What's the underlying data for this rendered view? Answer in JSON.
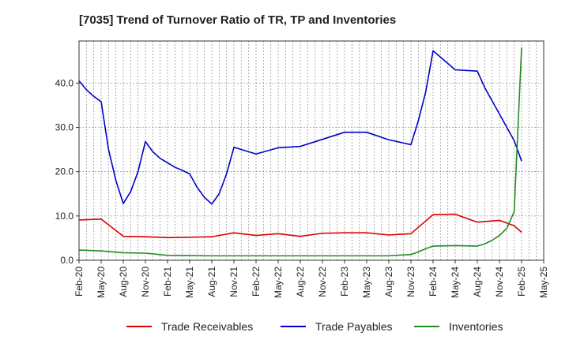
{
  "chart_data": {
    "type": "line",
    "title": "[7035]  Trend of Turnover Ratio of TR, TP and Inventories",
    "xlabel": "",
    "ylabel": "",
    "x_ticks": [
      "Feb-20",
      "May-20",
      "Aug-20",
      "Nov-20",
      "Feb-21",
      "May-21",
      "Aug-21",
      "Nov-21",
      "Feb-22",
      "May-22",
      "Aug-22",
      "Nov-22",
      "Feb-23",
      "May-23",
      "Aug-23",
      "Nov-23",
      "Feb-24",
      "May-24",
      "Aug-24",
      "Nov-24",
      "Feb-25",
      "May-25"
    ],
    "y_ticks": [
      "0.0",
      "10.0",
      "20.0",
      "30.0",
      "40.0"
    ],
    "ylim": [
      0,
      49.5
    ],
    "grid": true,
    "legend_position": "bottom",
    "series": [
      {
        "name": "Trade Receivables",
        "color": "#dd0000",
        "points": [
          [
            0,
            9.1
          ],
          [
            3,
            9.3
          ],
          [
            6,
            5.4
          ],
          [
            9,
            5.3
          ],
          [
            12,
            5.1
          ],
          [
            15,
            5.2
          ],
          [
            18,
            5.3
          ],
          [
            21,
            6.2
          ],
          [
            24,
            5.6
          ],
          [
            27,
            6.0
          ],
          [
            30,
            5.4
          ],
          [
            33,
            6.1
          ],
          [
            36,
            6.2
          ],
          [
            39,
            6.2
          ],
          [
            42,
            5.7
          ],
          [
            45,
            6.0
          ],
          [
            48,
            10.3
          ],
          [
            51,
            10.4
          ],
          [
            54,
            8.6
          ],
          [
            57,
            9.0
          ],
          [
            59,
            7.8
          ],
          [
            60,
            6.3
          ]
        ]
      },
      {
        "name": "Trade Payables",
        "color": "#0000cc",
        "points": [
          [
            0,
            40.5
          ],
          [
            1,
            38.5
          ],
          [
            2,
            37
          ],
          [
            3,
            35.8
          ],
          [
            4,
            25
          ],
          [
            5,
            18
          ],
          [
            6,
            12.8
          ],
          [
            7,
            15.5
          ],
          [
            8,
            20
          ],
          [
            9,
            26.8
          ],
          [
            10,
            24.5
          ],
          [
            11,
            23
          ],
          [
            12,
            22
          ],
          [
            13,
            21
          ],
          [
            14,
            20.3
          ],
          [
            15,
            19.5
          ],
          [
            16,
            16.5
          ],
          [
            17,
            14.2
          ],
          [
            18,
            12.7
          ],
          [
            19,
            15
          ],
          [
            20,
            19.5
          ],
          [
            21,
            25.5
          ],
          [
            24,
            24
          ],
          [
            27,
            25.4
          ],
          [
            30,
            25.7
          ],
          [
            33,
            27.3
          ],
          [
            36,
            28.9
          ],
          [
            39,
            28.9
          ],
          [
            42,
            27.2
          ],
          [
            45,
            26.1
          ],
          [
            46,
            31.5
          ],
          [
            47,
            38
          ],
          [
            48,
            47.3
          ],
          [
            51,
            43
          ],
          [
            54,
            42.7
          ],
          [
            55,
            39
          ],
          [
            57,
            33
          ],
          [
            59,
            27
          ],
          [
            60,
            22.4
          ]
        ]
      },
      {
        "name": "Inventories",
        "color": "#228b22",
        "points": [
          [
            0,
            2.3
          ],
          [
            3,
            2.1
          ],
          [
            6,
            1.7
          ],
          [
            9,
            1.6
          ],
          [
            12,
            1.1
          ],
          [
            15,
            1.05
          ],
          [
            18,
            1.0
          ],
          [
            21,
            1.0
          ],
          [
            24,
            1.0
          ],
          [
            27,
            1.0
          ],
          [
            30,
            1.0
          ],
          [
            33,
            1.0
          ],
          [
            36,
            1.0
          ],
          [
            39,
            1.0
          ],
          [
            42,
            1.0
          ],
          [
            45,
            1.3
          ],
          [
            46,
            1.9
          ],
          [
            47,
            2.6
          ],
          [
            48,
            3.2
          ],
          [
            51,
            3.3
          ],
          [
            54,
            3.2
          ],
          [
            55,
            3.7
          ],
          [
            56,
            4.5
          ],
          [
            57,
            5.6
          ],
          [
            58,
            7.2
          ],
          [
            59,
            11
          ],
          [
            60,
            48
          ]
        ]
      }
    ]
  }
}
